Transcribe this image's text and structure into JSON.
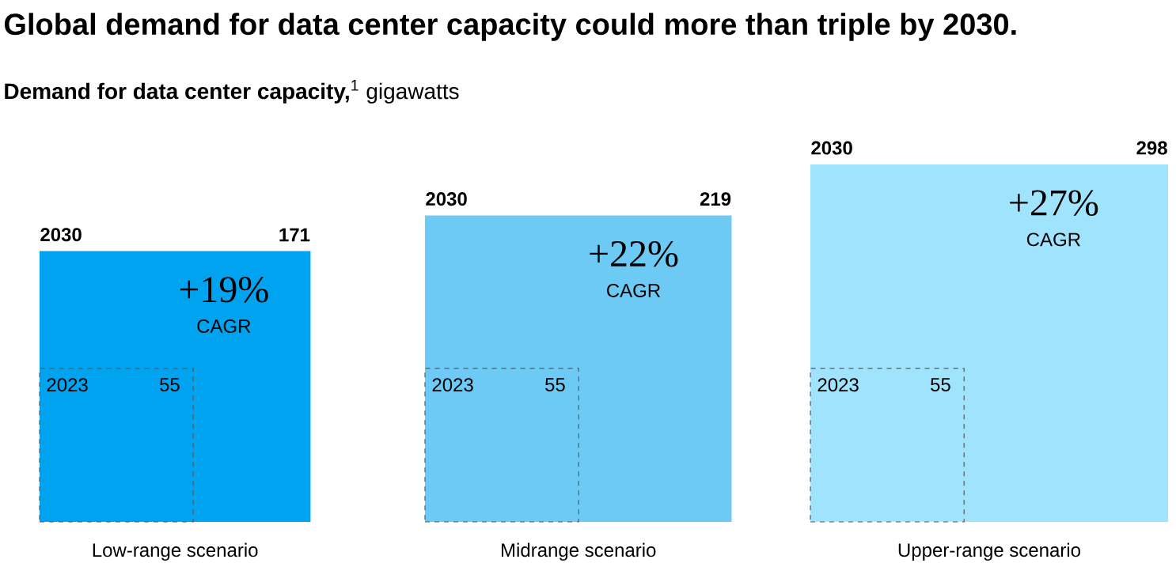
{
  "chart_data": {
    "type": "other",
    "title": "Global demand for data center capacity could more than triple by 2030.",
    "subtitle": "**Demand for data center capacity,**$^{1}$ gigawatts",
    "categories": [
      "Low-range scenario",
      "Midrange scenario",
      "Upper-range scenario"
    ],
    "series": [
      {
        "name": "2030",
        "values": [
          171,
          219,
          298
        ],
        "colors": [
          "#00a3ef",
          "#6ccaf5",
          "#9fe3fc"
        ]
      },
      {
        "name": "2023",
        "values": [
          55,
          55,
          55
        ],
        "colors": [
          "#00a3ef",
          "#6ccaf5",
          "#9fe3fc"
        ]
      }
    ],
    "data_labels": true,
    "annotations": [
      {
        "text": "+19%",
        "x": "Low-range scenario"
      },
      {
        "text": "CAGR",
        "x": "Low-range scenario"
      },
      {
        "text": "+22%",
        "x": "Midrange scenario"
      },
      {
        "text": "CAGR",
        "x": "Midrange scenario"
      },
      {
        "text": "+27%",
        "x": "Upper-range scenario"
      },
      {
        "text": "CAGR",
        "x": "Upper-range scenario"
      }
    ]
  }
}
